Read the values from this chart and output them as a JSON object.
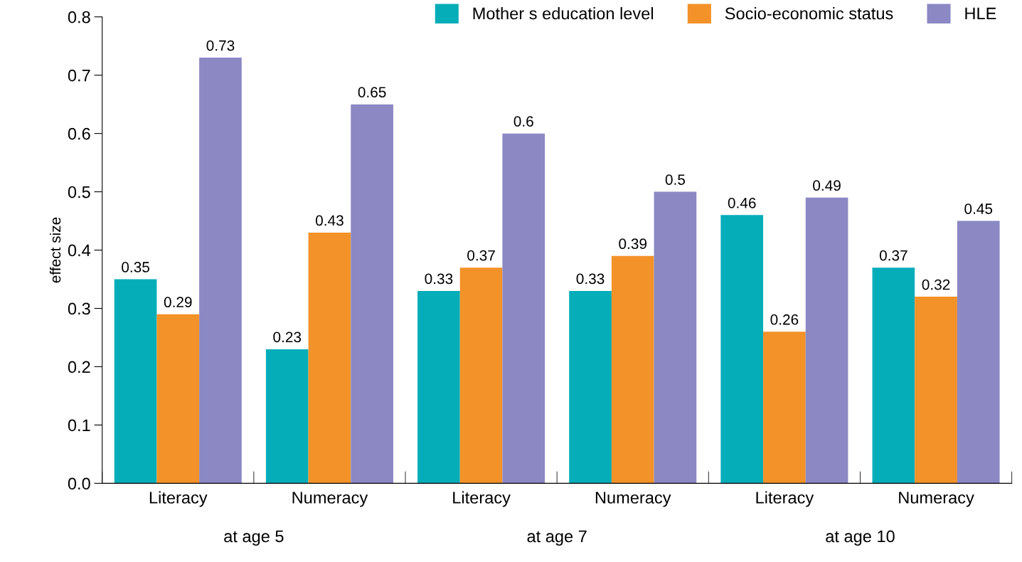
{
  "chart_data": {
    "type": "bar",
    "ylabel": "effect size",
    "categories": [
      "Literacy",
      "Numeracy",
      "Literacy",
      "Numeracy",
      "Literacy",
      "Numeracy"
    ],
    "series": [
      {
        "name": "Mother s education level",
        "color": "#05adb9",
        "values": [
          0.35,
          0.23,
          0.33,
          0.33,
          0.46,
          0.37
        ]
      },
      {
        "name": "Socio-economic status",
        "color": "#f39229",
        "values": [
          0.29,
          0.43,
          0.37,
          0.39,
          0.26,
          0.32
        ]
      },
      {
        "name": "HLE",
        "color": "#8b88c4",
        "values": [
          0.73,
          0.65,
          0.6,
          0.5,
          0.49,
          0.45
        ]
      }
    ],
    "ylim": [
      0,
      0.8
    ],
    "yticks": [
      {
        "value": 0,
        "label": "0.0"
      },
      0.1,
      0.2,
      0.3,
      0.4,
      0.5,
      0.6,
      0.7,
      0.8
    ],
    "annotations": [
      "at age 5",
      "at age 7",
      "at age 10"
    ],
    "data_labels": true,
    "grid": false,
    "legend": "top right"
  }
}
